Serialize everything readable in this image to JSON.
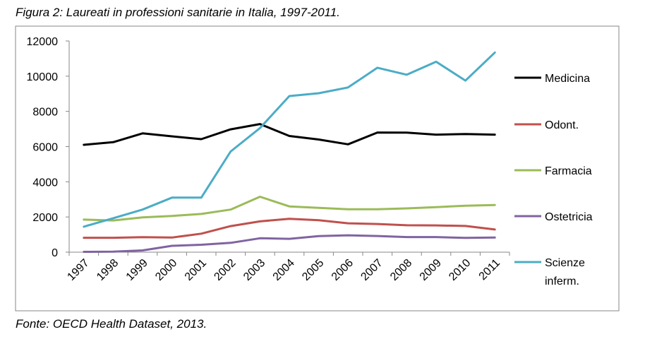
{
  "caption": "Figura 2: Laureati in professioni sanitarie in Italia, 1997-2011.",
  "source": "Fonte: OECD Health Dataset, 2013.",
  "chart_data": {
    "type": "line",
    "title": "",
    "xlabel": "",
    "ylabel": "",
    "categories": [
      "1997",
      "1998",
      "1999",
      "2000",
      "2001",
      "2002",
      "2003",
      "2004",
      "2005",
      "2006",
      "2007",
      "2008",
      "2009",
      "2010",
      "2011"
    ],
    "ylim": [
      0,
      12000
    ],
    "yticks": [
      0,
      2000,
      4000,
      6000,
      8000,
      10000,
      12000
    ],
    "grid": false,
    "legend_position": "right",
    "series": [
      {
        "name": "Medicina",
        "color": "#000000",
        "values": [
          6100,
          6250,
          6750,
          6580,
          6420,
          6980,
          7280,
          6600,
          6400,
          6130,
          6800,
          6790,
          6680,
          6710,
          6680
        ]
      },
      {
        "name": "Odont.",
        "color": "#c0504d",
        "values": [
          820,
          820,
          850,
          830,
          1050,
          1480,
          1750,
          1900,
          1820,
          1640,
          1600,
          1530,
          1520,
          1490,
          1290
        ]
      },
      {
        "name": "Farmacia",
        "color": "#9bbb59",
        "values": [
          1850,
          1800,
          1980,
          2060,
          2170,
          2420,
          3150,
          2600,
          2520,
          2440,
          2440,
          2490,
          2560,
          2640,
          2680
        ]
      },
      {
        "name": "Ostetricia",
        "color": "#8064a2",
        "values": [
          20,
          30,
          100,
          360,
          420,
          530,
          790,
          760,
          910,
          960,
          920,
          860,
          860,
          810,
          830
        ]
      },
      {
        "name": "Scienze inferm.",
        "legend_lines": [
          "Scienze",
          "inferm."
        ],
        "color": "#4bacc6",
        "values": [
          1450,
          1930,
          2420,
          3100,
          3100,
          5720,
          7050,
          8870,
          9030,
          9360,
          10480,
          10080,
          10820,
          9750,
          11340
        ]
      }
    ]
  }
}
